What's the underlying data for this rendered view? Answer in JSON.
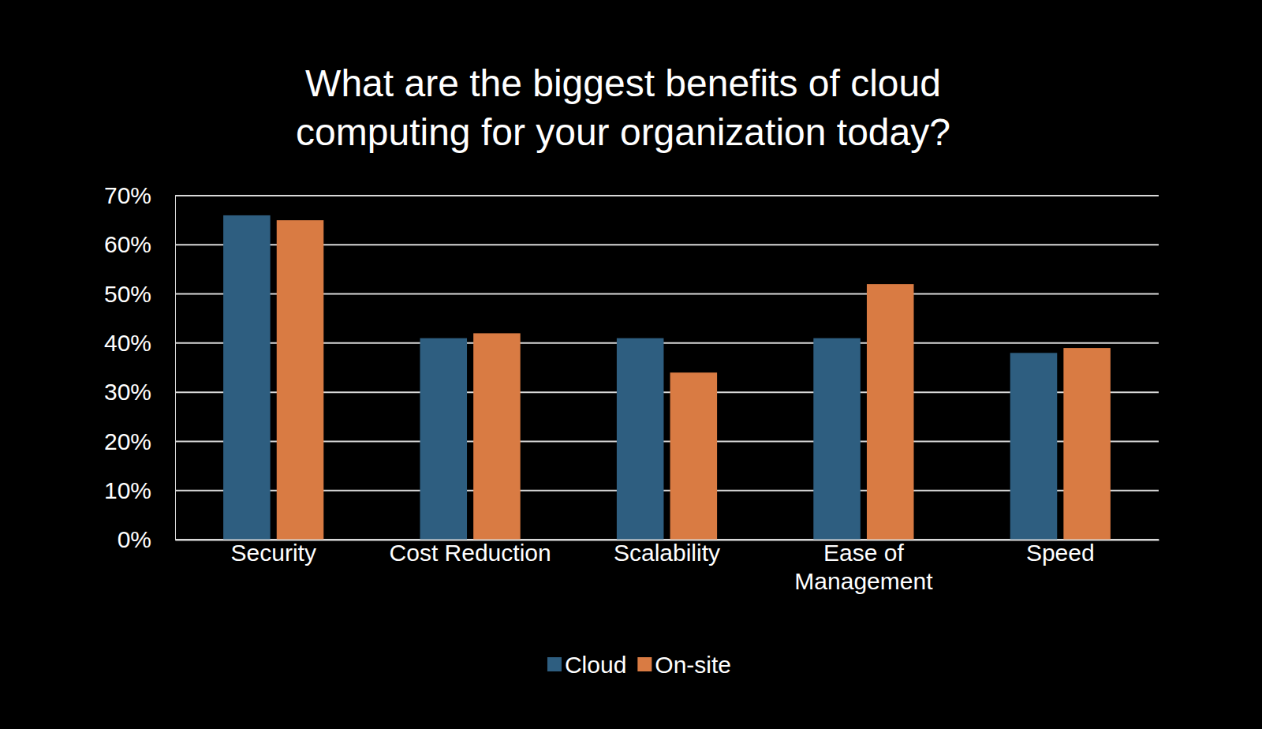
{
  "chart_data": {
    "type": "bar",
    "title": "What are the biggest benefits of cloud computing for your organization today?",
    "categories": [
      "Security",
      "Cost Reduction",
      "Scalability",
      "Ease of Management",
      "Speed"
    ],
    "series": [
      {
        "name": "Cloud",
        "color": "#2e5e80",
        "values": [
          66,
          41,
          41,
          41,
          38
        ]
      },
      {
        "name": "On-site",
        "color": "#d97b43",
        "values": [
          65,
          42,
          34,
          52,
          39
        ]
      }
    ],
    "ylim": [
      0,
      70
    ],
    "yticks": [
      {
        "value": 0,
        "label": "0%"
      },
      {
        "value": 10,
        "label": "10%"
      },
      {
        "value": 20,
        "label": "20%"
      },
      {
        "value": 30,
        "label": "30%"
      },
      {
        "value": 40,
        "label": "40%"
      },
      {
        "value": 50,
        "label": "50%"
      },
      {
        "value": 60,
        "label": "60%"
      },
      {
        "value": 70,
        "label": "70%"
      }
    ],
    "grid": true,
    "legend": "bottom"
  }
}
